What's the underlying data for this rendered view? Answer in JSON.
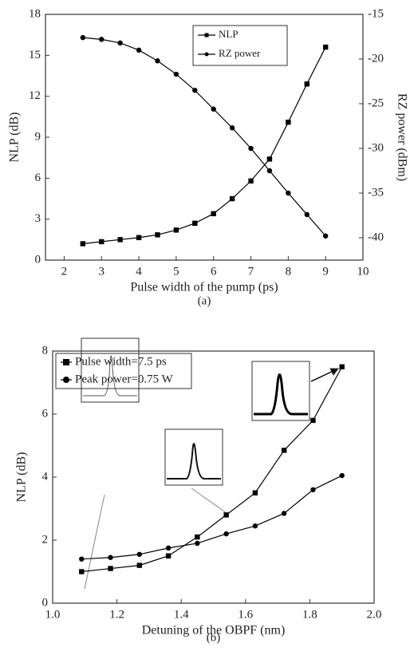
{
  "chart_data": [
    {
      "type": "line",
      "caption": "(a)",
      "x_label": "Pulse width of the pump (ps)",
      "y_label": "NLP (dB)",
      "y2_label": "RZ power (dBm)",
      "x": [
        2.5,
        3,
        3.5,
        4,
        4.5,
        5,
        5.5,
        6,
        6.5,
        7,
        7.5,
        8,
        8.5,
        9
      ],
      "series": [
        {
          "name": "NLP",
          "color": "#000000",
          "marker": "square",
          "values": [
            1.2,
            1.35,
            1.5,
            1.65,
            1.85,
            2.2,
            2.7,
            3.4,
            4.5,
            5.8,
            7.4,
            10.1,
            12.9,
            15.6
          ]
        },
        {
          "name": "RZ power",
          "color": "#000000",
          "marker": "circle",
          "axis": "y2",
          "values": [
            -17.6,
            -17.8,
            -18.2,
            -19.0,
            -20.2,
            -21.7,
            -23.5,
            -25.6,
            -27.7,
            -30.0,
            -32.5,
            -35.0,
            -37.4,
            -39.8
          ]
        }
      ],
      "xlim": [
        1.5,
        10
      ],
      "xticks": [
        2,
        3,
        4,
        5,
        6,
        7,
        8,
        9,
        10
      ],
      "ylim": [
        0,
        18
      ],
      "yticks": [
        0,
        3,
        6,
        9,
        12,
        15,
        18
      ],
      "y2lim": [
        -42.5,
        -15
      ],
      "y2ticks": [
        -15,
        -20,
        -25,
        -30,
        -35,
        -40
      ],
      "legend": "top-right"
    },
    {
      "type": "line",
      "caption": "(b)",
      "x_label": "Detuning of the OBPF (nm)",
      "y_label": "NLP (dB)",
      "x": [
        1.09,
        1.18,
        1.27,
        1.36,
        1.45,
        1.54,
        1.63,
        1.72,
        1.81,
        1.9
      ],
      "series": [
        {
          "name": "Pulse width=7.5 ps",
          "color": "#000000",
          "marker": "square",
          "values": [
            1.0,
            1.1,
            1.2,
            1.5,
            2.1,
            2.8,
            3.5,
            4.85,
            5.8,
            7.5
          ]
        },
        {
          "name": "Peak power=0.75 W",
          "color": "#000000",
          "marker": "circle",
          "values": [
            1.4,
            1.45,
            1.55,
            1.75,
            1.9,
            2.2,
            2.45,
            2.85,
            3.6,
            4.05
          ]
        }
      ],
      "xlim": [
        1.0,
        2.0
      ],
      "xticks": [
        {
          "value": 1.0,
          "label": "1.0"
        },
        1.2,
        1.4,
        1.6,
        1.8,
        {
          "value": 2.0,
          "label": "2.0"
        }
      ],
      "ylim": [
        0,
        8
      ],
      "yticks": [
        0,
        2,
        4,
        6,
        8
      ],
      "legend": "top-left"
    }
  ]
}
